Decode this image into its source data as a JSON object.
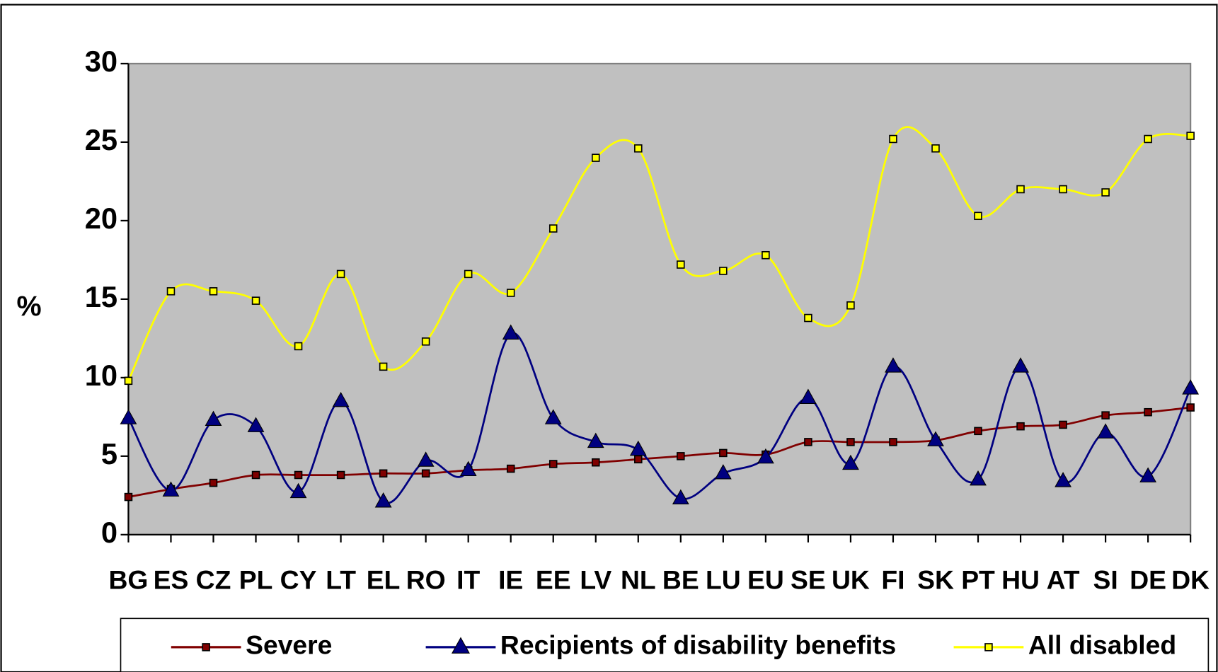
{
  "chart_data": {
    "type": "line",
    "y_label": "%",
    "categories": [
      "BG",
      "ES",
      "CZ",
      "PL",
      "CY",
      "LT",
      "EL",
      "RO",
      "IT",
      "IE",
      "EE",
      "LV",
      "NL",
      "BE",
      "LU",
      "EU",
      "SE",
      "UK",
      "FI",
      "SK",
      "PT",
      "HU",
      "AT",
      "SI",
      "DE",
      "DK"
    ],
    "series": [
      {
        "name": "Severe",
        "color": "#800000",
        "marker": "square",
        "marker_color": "#800000",
        "values": [
          2.4,
          2.9,
          3.3,
          3.8,
          3.8,
          3.8,
          3.9,
          3.9,
          4.1,
          4.2,
          4.5,
          4.6,
          4.8,
          5.0,
          5.2,
          5.1,
          5.9,
          5.9,
          5.9,
          6.0,
          6.6,
          6.9,
          7.0,
          7.6,
          7.8,
          8.1
        ]
      },
      {
        "name": "Recipients of disability benefits",
        "color": "#000080",
        "marker": "triangle",
        "marker_color": "#000080",
        "values": [
          7.4,
          2.8,
          7.3,
          6.9,
          2.7,
          8.5,
          2.1,
          4.7,
          4.1,
          12.8,
          7.4,
          5.9,
          5.4,
          2.3,
          3.9,
          4.9,
          8.7,
          4.5,
          10.7,
          6.0,
          3.5,
          10.7,
          3.4,
          6.5,
          3.7,
          9.3
        ]
      },
      {
        "name": "All disabled",
        "color": "#ffff00",
        "marker": "square",
        "marker_color": "#ffff00",
        "values": [
          9.8,
          15.5,
          15.5,
          14.9,
          12.0,
          16.6,
          10.7,
          12.3,
          16.6,
          15.4,
          19.5,
          24.0,
          24.6,
          17.2,
          16.8,
          17.8,
          13.8,
          14.6,
          25.2,
          24.6,
          20.3,
          22.0,
          22.0,
          21.8,
          25.2,
          25.4
        ]
      }
    ],
    "ylim": [
      0,
      30
    ],
    "yticks": [
      0,
      5,
      10,
      15,
      20,
      25,
      30
    ],
    "smooth": true,
    "grid": false,
    "legend": "bottom",
    "plot_background": "#c0c0c0"
  }
}
